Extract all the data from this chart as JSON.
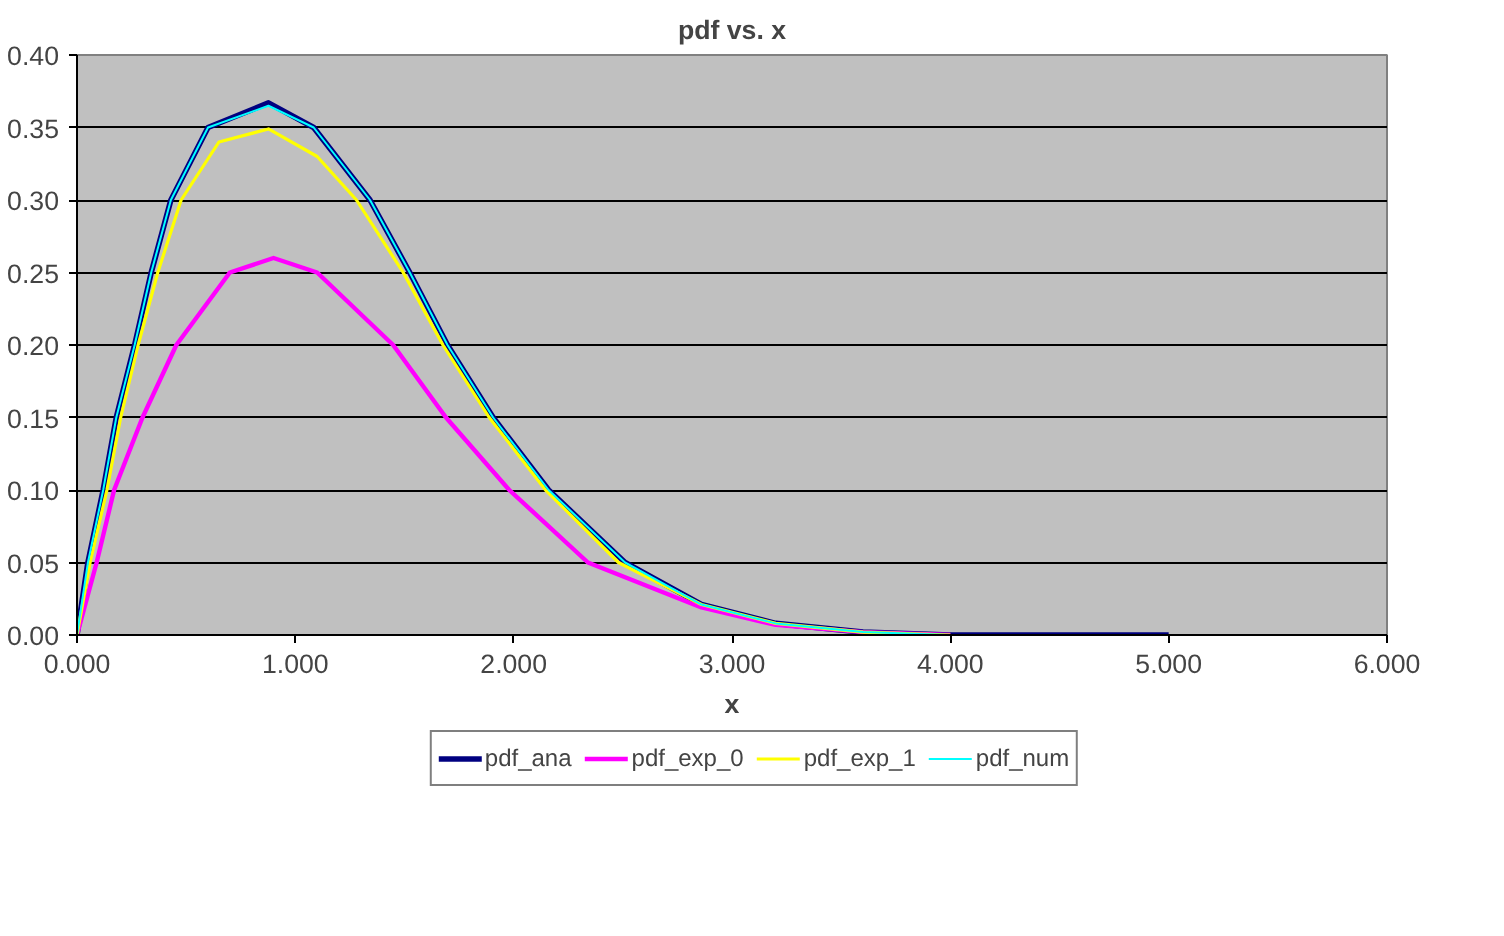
{
  "chart_data": {
    "type": "line",
    "title": "pdf vs. x",
    "xlabel": "x",
    "xlim": [
      0,
      6
    ],
    "ylim": [
      0,
      0.4
    ],
    "xticks": [
      {
        "value": 0,
        "label": "0.000"
      },
      {
        "value": 1,
        "label": "1.000"
      },
      {
        "value": 2,
        "label": "2.000"
      },
      {
        "value": 3,
        "label": "3.000"
      },
      {
        "value": 4,
        "label": "4.000"
      },
      {
        "value": 5,
        "label": "5.000"
      },
      {
        "value": 6,
        "label": "6.000"
      }
    ],
    "yticks": [
      {
        "value": 0,
        "label": "0.00"
      },
      {
        "value": 0.05,
        "label": "0.05"
      },
      {
        "value": 0.1,
        "label": "0.10"
      },
      {
        "value": 0.15,
        "label": "0.15"
      },
      {
        "value": 0.2,
        "label": "0.20"
      },
      {
        "value": 0.25,
        "label": "0.25"
      },
      {
        "value": 0.3,
        "label": "0.30"
      },
      {
        "value": 0.35,
        "label": "0.35"
      },
      {
        "value": 0.4,
        "label": "0.40"
      }
    ],
    "grid": "y",
    "legend": "bottom",
    "marker": "none",
    "line_style": "solid",
    "series": [
      {
        "name": "pdf_ana",
        "color": "#000080",
        "x": [
          0,
          0.05,
          0.12,
          0.18,
          0.264,
          0.34,
          0.43,
          0.6,
          0.877,
          1.084,
          1.342,
          1.524,
          1.697,
          1.906,
          2.16,
          2.51,
          2.86,
          3.2,
          3.6,
          4.0,
          4.5,
          5.0
        ],
        "values": [
          0,
          0.05,
          0.1,
          0.15,
          0.2,
          0.25,
          0.3,
          0.35,
          0.367,
          0.35,
          0.3,
          0.25,
          0.2,
          0.15,
          0.1,
          0.05,
          0.021,
          0.008,
          0.002,
          0,
          0,
          0
        ]
      },
      {
        "name": "pdf_exp_0",
        "color": "#ff00ff",
        "x": [
          0,
          0.09,
          0.17,
          0.3,
          0.455,
          0.7,
          0.9,
          1.1,
          1.448,
          1.69,
          1.98,
          2.34,
          2.86,
          3.2,
          3.6,
          4.0
        ],
        "values": [
          0,
          0.05,
          0.1,
          0.15,
          0.2,
          0.25,
          0.26,
          0.25,
          0.2,
          0.15,
          0.1,
          0.05,
          0.019,
          0.007,
          0.002,
          0
        ]
      },
      {
        "name": "pdf_exp_1",
        "color": "#ffff00",
        "x": [
          0,
          0.06,
          0.137,
          0.2,
          0.28,
          0.37,
          0.477,
          0.65,
          0.877,
          1.1,
          1.28,
          1.494,
          1.676,
          1.888,
          2.146,
          2.48,
          2.86,
          3.2,
          3.6,
          4.0
        ],
        "values": [
          0,
          0.05,
          0.1,
          0.15,
          0.2,
          0.25,
          0.3,
          0.34,
          0.349,
          0.33,
          0.3,
          0.25,
          0.2,
          0.15,
          0.1,
          0.05,
          0.021,
          0.008,
          0.002,
          0
        ]
      },
      {
        "name": "pdf_num",
        "color": "#00ffff",
        "x": [
          0,
          0.05,
          0.12,
          0.18,
          0.264,
          0.34,
          0.43,
          0.6,
          0.877,
          1.084,
          1.342,
          1.524,
          1.697,
          1.906,
          2.16,
          2.51,
          2.86,
          3.2,
          3.6,
          4.0,
          4.5,
          5.0
        ],
        "values": [
          0,
          0.05,
          0.1,
          0.15,
          0.2,
          0.25,
          0.3,
          0.35,
          0.365,
          0.35,
          0.3,
          0.25,
          0.2,
          0.15,
          0.1,
          0.05,
          0.021,
          0.008,
          0.002,
          0,
          0,
          0
        ]
      }
    ]
  }
}
